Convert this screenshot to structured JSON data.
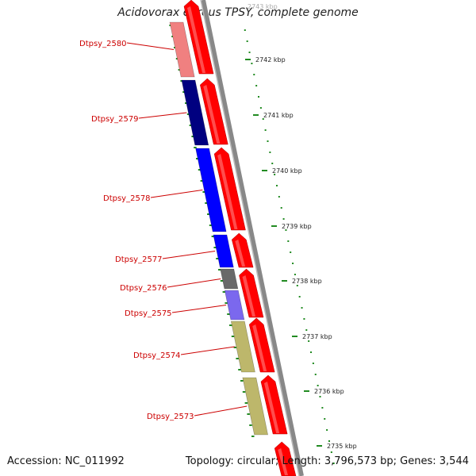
{
  "title": "Acidovorax ebreus TPSY, complete genome",
  "footer": {
    "accession": "Accession: NC_011992",
    "info": "Topology: circular; Length: 3,796,573 bp; Genes: 3,544"
  },
  "scale": {
    "top_label": "2743 kbp",
    "labels": [
      "2742 kbp",
      "2741 kbp",
      "2740 kbp",
      "2739 kbp",
      "2738 kbp",
      "2737 kbp",
      "2736 kbp",
      "2735 kbp"
    ]
  },
  "genes": [
    {
      "label": "Dtpsy_2580",
      "color": "#f08080"
    },
    {
      "label": "Dtpsy_2579",
      "color": "#000080"
    },
    {
      "label": "Dtpsy_2578",
      "color": "#0000ff"
    },
    {
      "label": "Dtpsy_2577",
      "color": "#0000ff"
    },
    {
      "label": "Dtpsy_2576",
      "color": "#696969"
    },
    {
      "label": "Dtpsy_2575",
      "color": "#7b68ee"
    },
    {
      "label": "Dtpsy_2574",
      "color": "#bdb76b"
    },
    {
      "label": "Dtpsy_2573",
      "color": "#bdb76b"
    }
  ],
  "colors": {
    "strand_arrow": "#ff0000",
    "backbone": "#888888",
    "label_text": "#cc0000",
    "tick": "#228b22"
  }
}
